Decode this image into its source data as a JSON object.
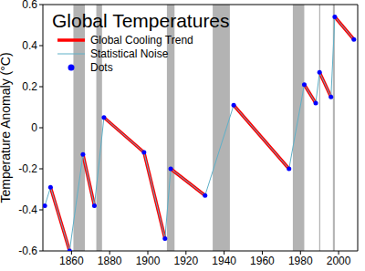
{
  "chart_data": {
    "type": "line",
    "title": "Global Temperatures",
    "y_label": "Temperature Anomaly (°C)",
    "x": [
      1846,
      1849,
      1859,
      1866,
      1872,
      1877,
      1898,
      1909,
      1912,
      1930,
      1945,
      1974,
      1982,
      1988,
      1990,
      1996,
      1998,
      2008
    ],
    "values": [
      -0.38,
      -0.29,
      -0.6,
      -0.13,
      -0.38,
      0.05,
      -0.12,
      -0.54,
      -0.2,
      -0.33,
      0.11,
      -0.2,
      0.21,
      0.12,
      0.27,
      0.15,
      0.54,
      0.43
    ],
    "series": [
      {
        "name": "Global Cooling Trend",
        "type": "line",
        "color": "#ff0000",
        "line_style": "solid",
        "segments": [
          [
            1849,
            1859
          ],
          [
            1866,
            1872
          ],
          [
            1877,
            1898
          ],
          [
            1898,
            1909
          ],
          [
            1912,
            1930
          ],
          [
            1945,
            1974
          ],
          [
            1982,
            1988
          ],
          [
            1990,
            1996
          ],
          [
            1998,
            2008
          ]
        ]
      },
      {
        "name": "Statistical Noise",
        "type": "line",
        "color": "#5fb0c8",
        "line_style": "solid"
      },
      {
        "name": "Dots",
        "type": "scatter",
        "color": "#0000ff",
        "marker": "circle"
      }
    ],
    "bands": [
      [
        1861,
        1867
      ],
      [
        1873,
        1876
      ],
      [
        1910,
        1914
      ],
      [
        1934,
        1943
      ],
      [
        1976,
        1982
      ],
      [
        1989.8,
        1990.4
      ],
      [
        1997,
        1998
      ]
    ],
    "xlim": [
      1845,
      2010
    ],
    "ylim": [
      -0.6,
      0.6
    ],
    "xticks": [
      1860,
      1880,
      1900,
      1920,
      1940,
      1960,
      1980,
      2000
    ],
    "yticks": [
      -0.6,
      -0.4,
      -0.2,
      0,
      0.2,
      0.4,
      0.6
    ],
    "grid": false,
    "legend": "upper left"
  }
}
